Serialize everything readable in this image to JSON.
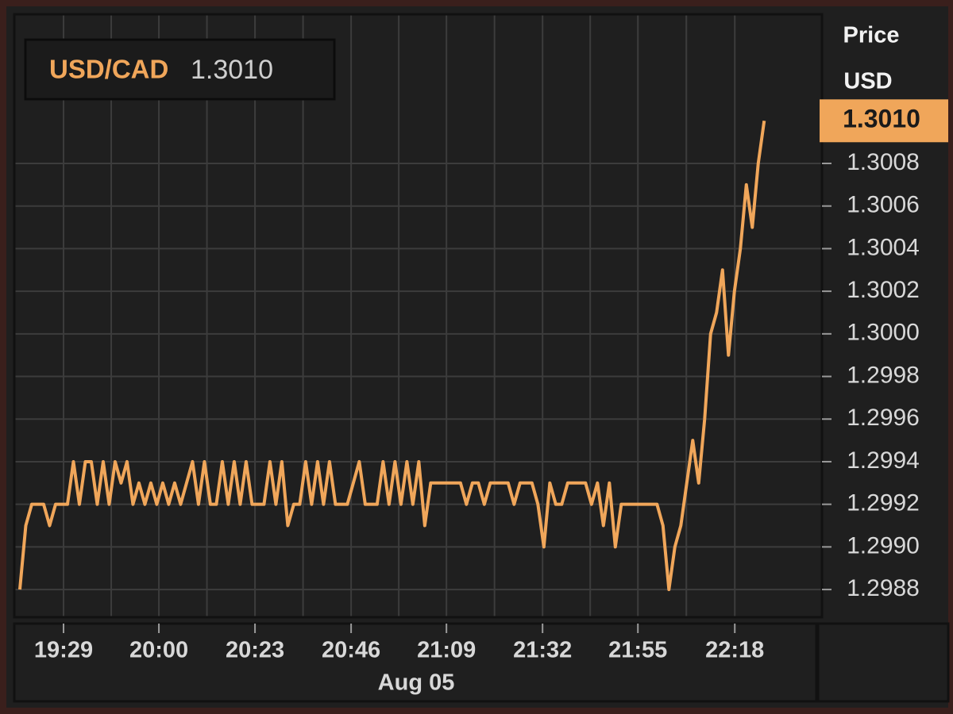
{
  "chart_data": {
    "type": "line",
    "series": [
      {
        "name": "USD/CAD",
        "color": "#f0a65a",
        "values": [
          1.2988,
          1.2991,
          1.2992,
          1.2992,
          1.2992,
          1.2991,
          1.2992,
          1.2992,
          1.2992,
          1.2994,
          1.2992,
          1.2994,
          1.2994,
          1.2992,
          1.2994,
          1.2992,
          1.2994,
          1.2993,
          1.2994,
          1.2992,
          1.2993,
          1.2992,
          1.2993,
          1.2992,
          1.2993,
          1.2992,
          1.2993,
          1.2992,
          1.2993,
          1.2994,
          1.2992,
          1.2994,
          1.2992,
          1.2992,
          1.2994,
          1.2992,
          1.2994,
          1.2992,
          1.2994,
          1.2992,
          1.2992,
          1.2992,
          1.2994,
          1.2992,
          1.2994,
          1.2991,
          1.2992,
          1.2992,
          1.2994,
          1.2992,
          1.2994,
          1.2992,
          1.2994,
          1.2992,
          1.2992,
          1.2992,
          1.2993,
          1.2994,
          1.2992,
          1.2992,
          1.2992,
          1.2994,
          1.2992,
          1.2994,
          1.2992,
          1.2994,
          1.2992,
          1.2994,
          1.2991,
          1.2993,
          1.2993,
          1.2993,
          1.2993,
          1.2993,
          1.2993,
          1.2992,
          1.2993,
          1.2993,
          1.2992,
          1.2993,
          1.2993,
          1.2993,
          1.2993,
          1.2992,
          1.2993,
          1.2993,
          1.2993,
          1.2992,
          1.299,
          1.2993,
          1.2992,
          1.2992,
          1.2993,
          1.2993,
          1.2993,
          1.2993,
          1.2992,
          1.2993,
          1.2991,
          1.2993,
          1.299,
          1.2992,
          1.2992,
          1.2992,
          1.2992,
          1.2992,
          1.2992,
          1.2992,
          1.2991,
          1.2988,
          1.299,
          1.2991,
          1.2993,
          1.2995,
          1.2993,
          1.2996,
          1.3,
          1.3001,
          1.3003,
          1.2999,
          1.3002,
          1.3004,
          1.3007,
          1.3005,
          1.3008,
          1.301
        ]
      }
    ],
    "last_value_label": "1.3010",
    "y_axis_title": "Price",
    "y_axis_unit": "USD",
    "x_axis_date": "Aug 05",
    "xlim": [
      -0.93,
      134.7
    ],
    "xticks": [
      {
        "value": 7.34,
        "label": "19:29"
      },
      {
        "value": 23.35,
        "label": "20:00"
      },
      {
        "value": 39.49,
        "label": "20:23"
      },
      {
        "value": 55.63,
        "label": "20:46"
      },
      {
        "value": 71.64,
        "label": "21:09"
      },
      {
        "value": 87.78,
        "label": "21:32"
      },
      {
        "value": 103.79,
        "label": "21:55"
      },
      {
        "value": 120.06,
        "label": "22:18"
      }
    ],
    "ylim": [
      1.29867,
      1.3015
    ],
    "yticks": [
      1.2988,
      {
        "value": 1.299,
        "label": "1.2990"
      },
      1.2992,
      1.2994,
      1.2996,
      1.2998,
      {
        "value": 1.3,
        "label": "1.3000"
      },
      1.3002,
      1.3004,
      1.3006,
      1.3008
    ],
    "grid": true
  }
}
